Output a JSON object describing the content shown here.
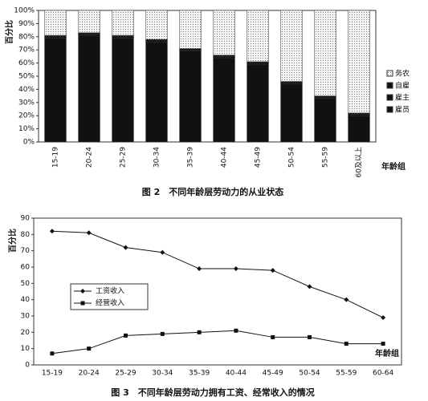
{
  "chart_data": [
    {
      "type": "stacked_bar",
      "title": "图 2　不同年龄层劳动力的从业状态",
      "y_label": "百分比",
      "x_label": "年龄组",
      "categories": [
        "15-19",
        "20-24",
        "25-29",
        "30-34",
        "35-39",
        "40-44",
        "45-49",
        "50-54",
        "55-59",
        "60及以上"
      ],
      "series": [
        {
          "name": "雇员",
          "color": "#111111",
          "values": [
            79,
            81,
            79,
            76,
            69,
            64,
            59,
            44,
            33,
            20
          ]
        },
        {
          "name": "雇主",
          "color": "#111111",
          "values": [
            1,
            1,
            1,
            1,
            1,
            1,
            1,
            1,
            1,
            1
          ]
        },
        {
          "name": "自雇",
          "color": "#111111",
          "values": [
            1,
            1,
            1,
            1,
            1,
            1,
            1,
            1,
            1,
            1
          ]
        },
        {
          "name": "务农",
          "color": "#eeeeee",
          "fill_pattern": "dots",
          "values": [
            19,
            17,
            19,
            22,
            29,
            34,
            39,
            54,
            65,
            78
          ]
        }
      ],
      "ylim": [
        0,
        100
      ],
      "yticks": [
        {
          "value": 0,
          "label": "0%"
        },
        {
          "value": 10,
          "label": "10%"
        },
        {
          "value": 20,
          "label": "20%"
        },
        {
          "value": 30,
          "label": "30%"
        },
        {
          "value": 40,
          "label": "40%"
        },
        {
          "value": 50,
          "label": "50%"
        },
        {
          "value": 60,
          "label": "60%"
        },
        {
          "value": 70,
          "label": "70%"
        },
        {
          "value": 80,
          "label": "80%"
        },
        {
          "value": 90,
          "label": "90%"
        },
        {
          "value": 100,
          "label": "100%"
        }
      ],
      "legend": "right"
    },
    {
      "type": "line",
      "title": "图 3　不同年龄层劳动力拥有工资、经常收入的情况",
      "y_label": "百分比",
      "x_label": "年龄组",
      "categories": [
        "15-19",
        "20-24",
        "25-29",
        "30-34",
        "35-39",
        "40-44",
        "45-49",
        "50-54",
        "55-59",
        "60-64"
      ],
      "series": [
        {
          "name": "工资收入",
          "color": "#111111",
          "marker": "diamond",
          "values": [
            82,
            81,
            72,
            69,
            59,
            59,
            58,
            48,
            40,
            29
          ]
        },
        {
          "name": "经营收入",
          "color": "#111111",
          "marker": "square",
          "values": [
            7,
            10,
            18,
            19,
            20,
            21,
            17,
            17,
            13,
            13
          ]
        }
      ],
      "ylim": [
        0,
        90
      ],
      "yticks": [
        0,
        10,
        20,
        30,
        40,
        50,
        60,
        70,
        80,
        90
      ],
      "legend": "left"
    }
  ]
}
